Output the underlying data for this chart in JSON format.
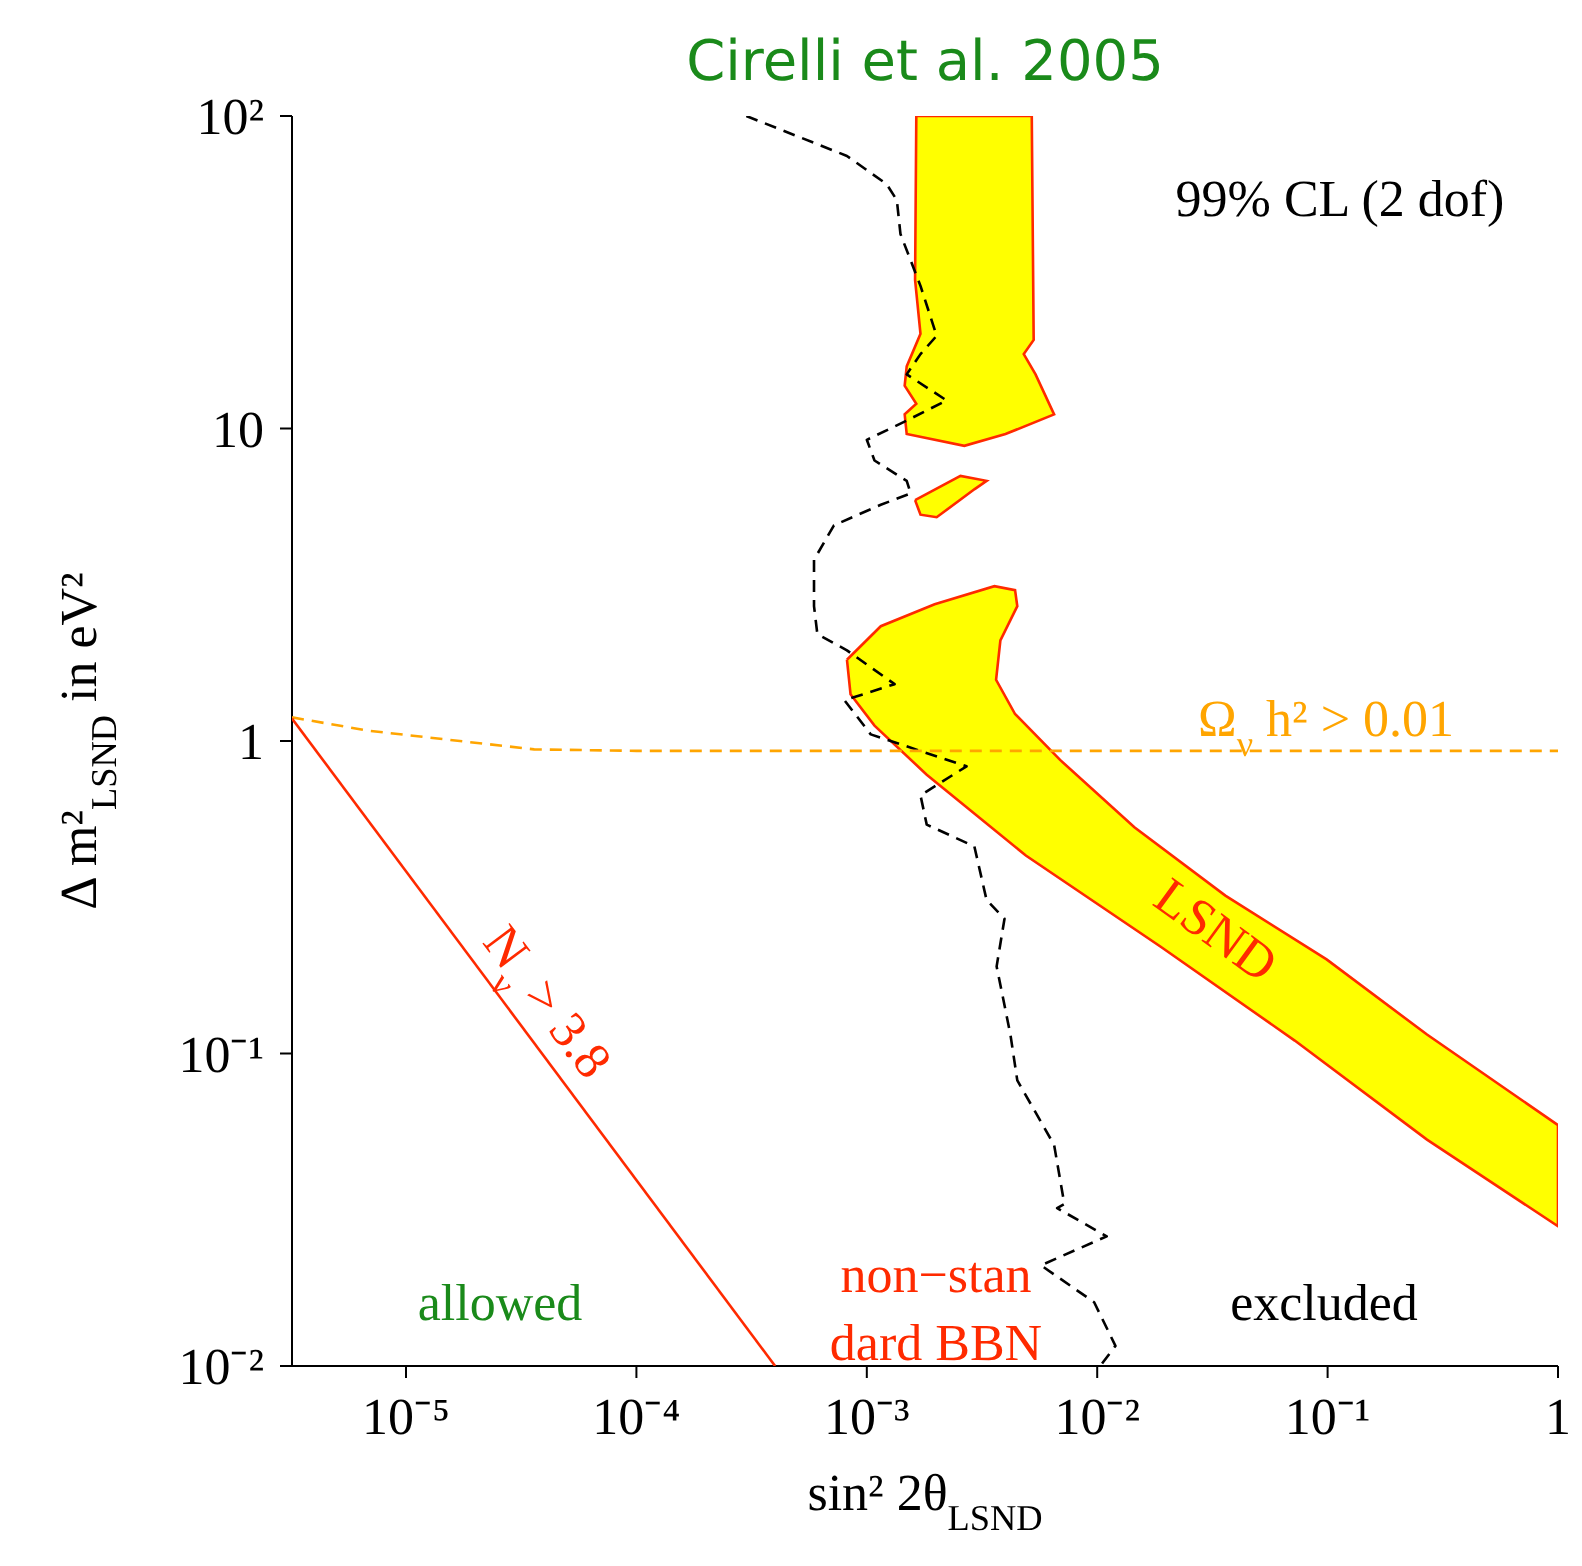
{
  "chart_data": {
    "type": "line",
    "title": "Cirelli et al. 2005",
    "xlabel": "sin² 2θ$_{LSND}$",
    "ylabel": "Δ m²$_{LSND}$ in eV²",
    "log": "xy",
    "marker": "none",
    "xlim": [
      3.2e-06,
      1
    ],
    "ylim": [
      0.01,
      100
    ],
    "xticks": [
      {
        "value": 1e-05,
        "label": "10⁻⁵"
      },
      {
        "value": 0.0001,
        "label": "10⁻⁴"
      },
      {
        "value": 0.001,
        "label": "10⁻³"
      },
      {
        "value": 0.01,
        "label": "10⁻²"
      },
      {
        "value": 0.1,
        "label": "10⁻¹"
      },
      1
    ],
    "yticks": [
      {
        "value": 0.01,
        "label": "10⁻²"
      },
      {
        "value": 0.1,
        "label": "10⁻¹"
      },
      1,
      10,
      {
        "value": 100,
        "label": "10²"
      }
    ],
    "series": [
      {
        "type": "area",
        "color": "#ffff00",
        "x": [
          0.00164,
          0.0052,
          0.0053,
          0.0048,
          0.0054,
          0.0065,
          0.004,
          0.00265,
          0.00149,
          0.00146,
          0.00164,
          0.00146,
          0.00149,
          0.00171,
          0.00162,
          0.00164
        ],
        "values": [
          100,
          100,
          19.2,
          17.3,
          14.9,
          11.1,
          9.6,
          8.8,
          9.6,
          11.1,
          12,
          13.7,
          15.8,
          20.1,
          29.9,
          100
        ]
      },
      {
        "type": "area",
        "color": "#ffff00",
        "x": [
          0.00162,
          0.00255,
          0.00331,
          0.00294,
          0.00201,
          0.00171,
          0.00162
        ],
        "values": [
          5.9,
          7.05,
          6.8,
          6.4,
          5.2,
          5.3,
          5.9
        ]
      },
      {
        "type": "area",
        "color": "#ffff00",
        "x": [
          0.00082,
          0.00115,
          0.00197,
          0.00358,
          0.0044,
          0.0045,
          0.0038,
          0.00364,
          0.0044,
          0.0069,
          0.0145,
          0.036,
          0.099,
          0.27,
          1,
          1,
          0.27,
          0.072,
          0.0188,
          0.0049,
          0.00182,
          0.00108,
          0.00085,
          0.00082
        ],
        "values": [
          1.82,
          2.33,
          2.74,
          3.13,
          3.04,
          2.7,
          2.1,
          1.57,
          1.22,
          0.87,
          0.53,
          0.32,
          0.2,
          0.115,
          0.059,
          0.028,
          0.053,
          0.11,
          0.22,
          0.43,
          0.78,
          1.12,
          1.41,
          1.82
        ]
      },
      {
        "color": "#000000",
        "line_style": "dashed",
        "x": [
          0.0003,
          0.00082,
          0.00122,
          0.00135,
          0.0014,
          0.00171,
          0.00201,
          0.00171,
          0.00149,
          0.00222,
          0.00149,
          0.001,
          0.00108,
          0.00149,
          0.00155,
          0.00115,
          0.00072,
          0.00059,
          0.00059,
          0.00061,
          0.00082,
          0.00132,
          0.0008,
          0.00104,
          0.00271,
          0.00171,
          0.00182,
          0.00293,
          0.00331,
          0.00396,
          0.00366,
          0.0042,
          0.0045,
          0.0065,
          0.0072,
          0.0067,
          0.011,
          0.0057,
          0.0097,
          0.012,
          0.0103
        ],
        "values": [
          100,
          74.5,
          60.5,
          53.8,
          41.9,
          28.6,
          19.8,
          17.3,
          14.9,
          12.3,
          10.6,
          9.2,
          7.9,
          6.8,
          6.2,
          5.7,
          4.9,
          3.8,
          2.7,
          2.2,
          1.95,
          1.52,
          1.35,
          1.05,
          0.83,
          0.67,
          0.54,
          0.46,
          0.31,
          0.27,
          0.19,
          0.115,
          0.082,
          0.051,
          0.033,
          0.032,
          0.026,
          0.021,
          0.016,
          0.0116,
          0.01
        ]
      },
      {
        "color": "#ffa500",
        "line_style": "dashed",
        "x": [
          3.2e-06,
          6.8e-06,
          3.6e-05,
          0.0001,
          1
        ],
        "values": [
          1.19,
          1.08,
          0.94,
          0.93,
          0.93
        ]
      },
      {
        "color": "#ff2a00",
        "line_style": "solid",
        "x": [
          3.2e-06,
          0.0004
        ],
        "values": [
          1.18,
          0.01
        ]
      }
    ],
    "annotations": [
      "N$_{ν}$ > 3.8",
      "LSND",
      "Ω$_{ν}$ h² > 0.01",
      "99% CL (2 dof)",
      "allowed",
      "non−stan\ndard BBN",
      "excluded"
    ]
  }
}
